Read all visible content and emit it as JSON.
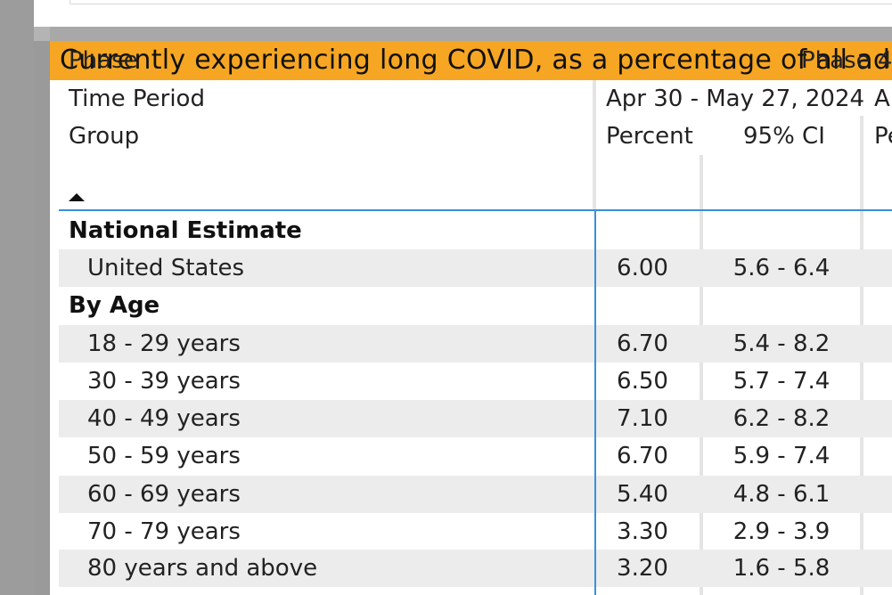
{
  "visual": {
    "title": "Currently experiencing long COVID, as a percentage of all ad"
  },
  "matrix": {
    "row_headers": {
      "phase": "Phase",
      "time_period": "Time Period",
      "group": "Group"
    },
    "column_headers": {
      "phase_value": "Phase 4.",
      "period_1": "Apr 30 - May 27, 2024",
      "period_2_partial": "A",
      "col_percent": "Percent",
      "col_ci": "95% CI",
      "col_percent_2_partial": "Pe"
    },
    "sort_indicator": "sort-ascending-icon",
    "rows": [
      {
        "label": "National Estimate",
        "type": "group",
        "percent": "",
        "ci": ""
      },
      {
        "label": "United States",
        "type": "item",
        "percent": "6.00",
        "ci": "5.6 - 6.4"
      },
      {
        "label": "By Age",
        "type": "group",
        "percent": "",
        "ci": ""
      },
      {
        "label": "18 - 29 years",
        "type": "item",
        "percent": "6.70",
        "ci": "5.4 - 8.2"
      },
      {
        "label": "30 - 39 years",
        "type": "item",
        "percent": "6.50",
        "ci": "5.7 - 7.4"
      },
      {
        "label": "40 - 49 years",
        "type": "item",
        "percent": "7.10",
        "ci": "6.2 - 8.2"
      },
      {
        "label": "50 - 59 years",
        "type": "item",
        "percent": "6.70",
        "ci": "5.9 - 7.4"
      },
      {
        "label": "60 - 69 years",
        "type": "item",
        "percent": "5.40",
        "ci": "4.8 - 6.1"
      },
      {
        "label": "70 - 79 years",
        "type": "item",
        "percent": "3.30",
        "ci": "2.9 - 3.9"
      },
      {
        "label": "80 years and above",
        "type": "item",
        "percent": "3.20",
        "ci": "1.6 - 5.8"
      }
    ]
  },
  "colors": {
    "title_bar": "#f6a623",
    "selection_line": "#3a8fd9",
    "row_shade": "#ececec"
  }
}
